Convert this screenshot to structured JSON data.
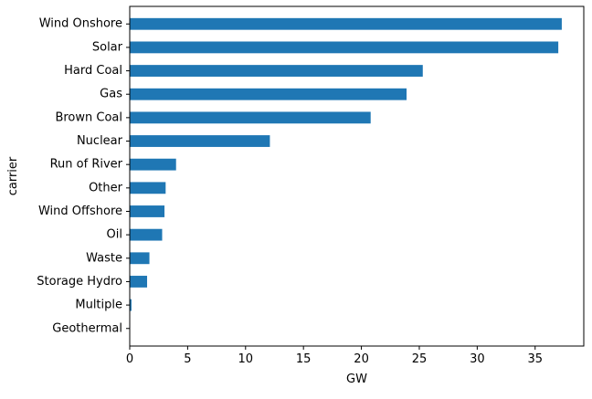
{
  "chart_data": {
    "type": "bar",
    "orientation": "horizontal",
    "title": "",
    "xlabel": "GW",
    "ylabel": "carrier",
    "categories": [
      "Wind Onshore",
      "Solar",
      "Hard Coal",
      "Gas",
      "Brown Coal",
      "Nuclear",
      "Run of River",
      "Other",
      "Wind Offshore",
      "Oil",
      "Waste",
      "Storage Hydro",
      "Multiple",
      "Geothermal"
    ],
    "values": [
      37.3,
      37.0,
      25.3,
      23.9,
      20.8,
      12.1,
      4.0,
      3.1,
      3.0,
      2.8,
      1.7,
      1.5,
      0.15,
      0.04
    ],
    "xlim": [
      0,
      39.2
    ],
    "xticks": [
      0,
      5,
      10,
      15,
      20,
      25,
      30,
      35
    ],
    "grid": false,
    "legend": "none",
    "bar_color": "#1f77b4"
  }
}
